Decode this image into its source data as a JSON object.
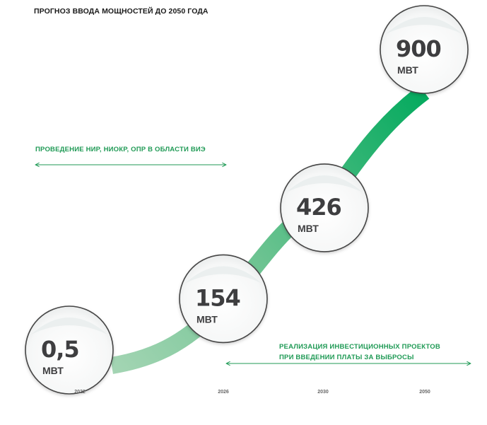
{
  "chart_data": {
    "type": "line",
    "title": "ПРОГНОЗ ВВОДА МОЩНОСТЕЙ ДО 2050 ГОДА",
    "x": [
      "2022",
      "2026",
      "2030",
      "2050"
    ],
    "series": [
      {
        "values": [
          0.5,
          154,
          426,
          900
        ]
      }
    ],
    "points": [
      {
        "x": "2022",
        "value_label": "0,5",
        "unit": "МВТ"
      },
      {
        "x": "2026",
        "value_label": "154",
        "unit": "МВТ"
      },
      {
        "x": "2030",
        "value_label": "426",
        "unit": "МВТ"
      },
      {
        "x": "2050",
        "value_label": "900",
        "unit": "МВТ"
      }
    ],
    "annotations": [
      {
        "text": [
          "ПРОВЕДЕНИЕ НИР, НИОКР, ОПР В ОБЛАСТИ ВИЭ"
        ],
        "span": [
          "2022",
          "2026"
        ]
      },
      {
        "text": [
          "РЕАЛИЗАЦИЯ ИНВЕСТИЦИОННЫХ ПРОЕКТОВ",
          "ПРИ ВВЕДЕНИИ ПЛАТЫ ЗА ВЫБРОСЫ"
        ],
        "span": [
          "2026",
          "2050"
        ]
      }
    ],
    "colors": {
      "accent": "#1f9a55",
      "line_start": "#a8d6b6",
      "line_end": "#00a95c",
      "text": "#3e3e40"
    }
  }
}
